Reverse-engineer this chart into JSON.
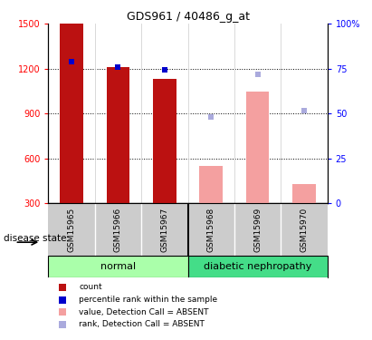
{
  "title": "GDS961 / 40486_g_at",
  "samples": [
    "GSM15965",
    "GSM15966",
    "GSM15967",
    "GSM15968",
    "GSM15969",
    "GSM15970"
  ],
  "bar_present_values": [
    1500,
    1210,
    1135,
    null,
    1050,
    null
  ],
  "bar_absent_values": [
    null,
    null,
    null,
    550,
    1050,
    430
  ],
  "rank_present": [
    1250,
    1210,
    1195,
    null,
    null,
    null
  ],
  "rank_absent": [
    null,
    null,
    null,
    880,
    1160,
    920
  ],
  "bar_color_present": "#bb1111",
  "bar_color_absent": "#f4a0a0",
  "rank_color_present": "#0000cc",
  "rank_color_absent": "#aaaadd",
  "ylim_left": [
    300,
    1500
  ],
  "ylim_right": [
    0,
    100
  ],
  "yticks_left": [
    300,
    600,
    900,
    1200,
    1500
  ],
  "yticks_right": [
    0,
    25,
    50,
    75,
    100
  ],
  "ytick_right_labels": [
    "0",
    "25",
    "50",
    "75",
    "100%"
  ],
  "group_normal_color": "#aaffaa",
  "group_dn_color": "#44dd88",
  "group_border_after_index": 2,
  "normal_label": "normal",
  "dn_label": "diabetic nephropathy",
  "group_row_label": "disease state",
  "legend_items": [
    {
      "label": "count",
      "color": "#bb1111"
    },
    {
      "label": "percentile rank within the sample",
      "color": "#0000cc"
    },
    {
      "label": "value, Detection Call = ABSENT",
      "color": "#f4a0a0"
    },
    {
      "label": "rank, Detection Call = ABSENT",
      "color": "#aaaadd"
    }
  ],
  "bar_width": 0.5,
  "sample_label_fontsize": 6.5,
  "tick_fontsize": 7,
  "title_fontsize": 9
}
